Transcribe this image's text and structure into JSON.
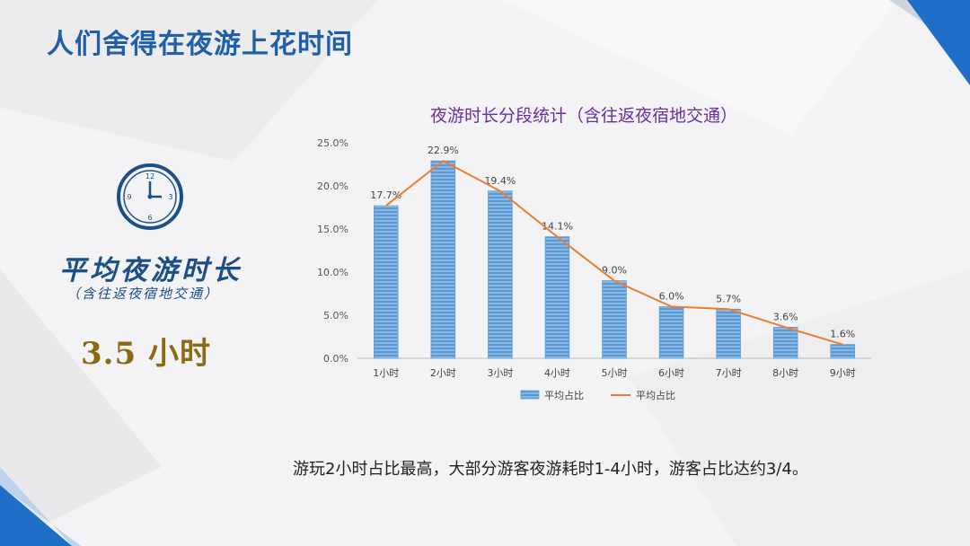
{
  "slide": {
    "title": "人们舍得在夜游上花时间"
  },
  "stat": {
    "label": "平均夜游时长",
    "note": "（含往返夜宿地交通）",
    "value": "3.5 小时",
    "icon": "clock-icon"
  },
  "caption": "游玩2小时占比最高，大部分游客夜游耗时1-4小时，游客占比达约3/4。",
  "colors": {
    "title": "#1f5fa8",
    "bar": "#5b9bd5",
    "line": "#ed7d31",
    "chart_title": "#6a2f9a",
    "value_gold": "#8a6b12"
  },
  "chart_data": {
    "type": "bar",
    "title": "夜游时长分段统计（含往返夜宿地交通）",
    "categories": [
      "1小时",
      "2小时",
      "3小时",
      "4小时",
      "5小时",
      "6小时",
      "7小时",
      "8小时",
      "9小时"
    ],
    "series": [
      {
        "name": "平均占比",
        "type": "bar",
        "values": [
          17.7,
          22.9,
          19.4,
          14.1,
          9.0,
          6.0,
          5.7,
          3.6,
          1.6
        ]
      },
      {
        "name": "平均占比",
        "type": "line",
        "values": [
          17.7,
          22.9,
          19.4,
          14.1,
          9.0,
          6.0,
          5.7,
          3.6,
          1.6
        ]
      }
    ],
    "data_labels": [
      "17.7%",
      "22.9%",
      "19.4%",
      "14.1%",
      "9.0%",
      "6.0%",
      "5.7%",
      "3.6%",
      "1.6%"
    ],
    "y_ticks": [
      "0.0%",
      "5.0%",
      "10.0%",
      "15.0%",
      "20.0%",
      "25.0%"
    ],
    "ylim": [
      0,
      25
    ],
    "xlabel": "",
    "ylabel": "",
    "grid": false,
    "legend": "bottom"
  }
}
